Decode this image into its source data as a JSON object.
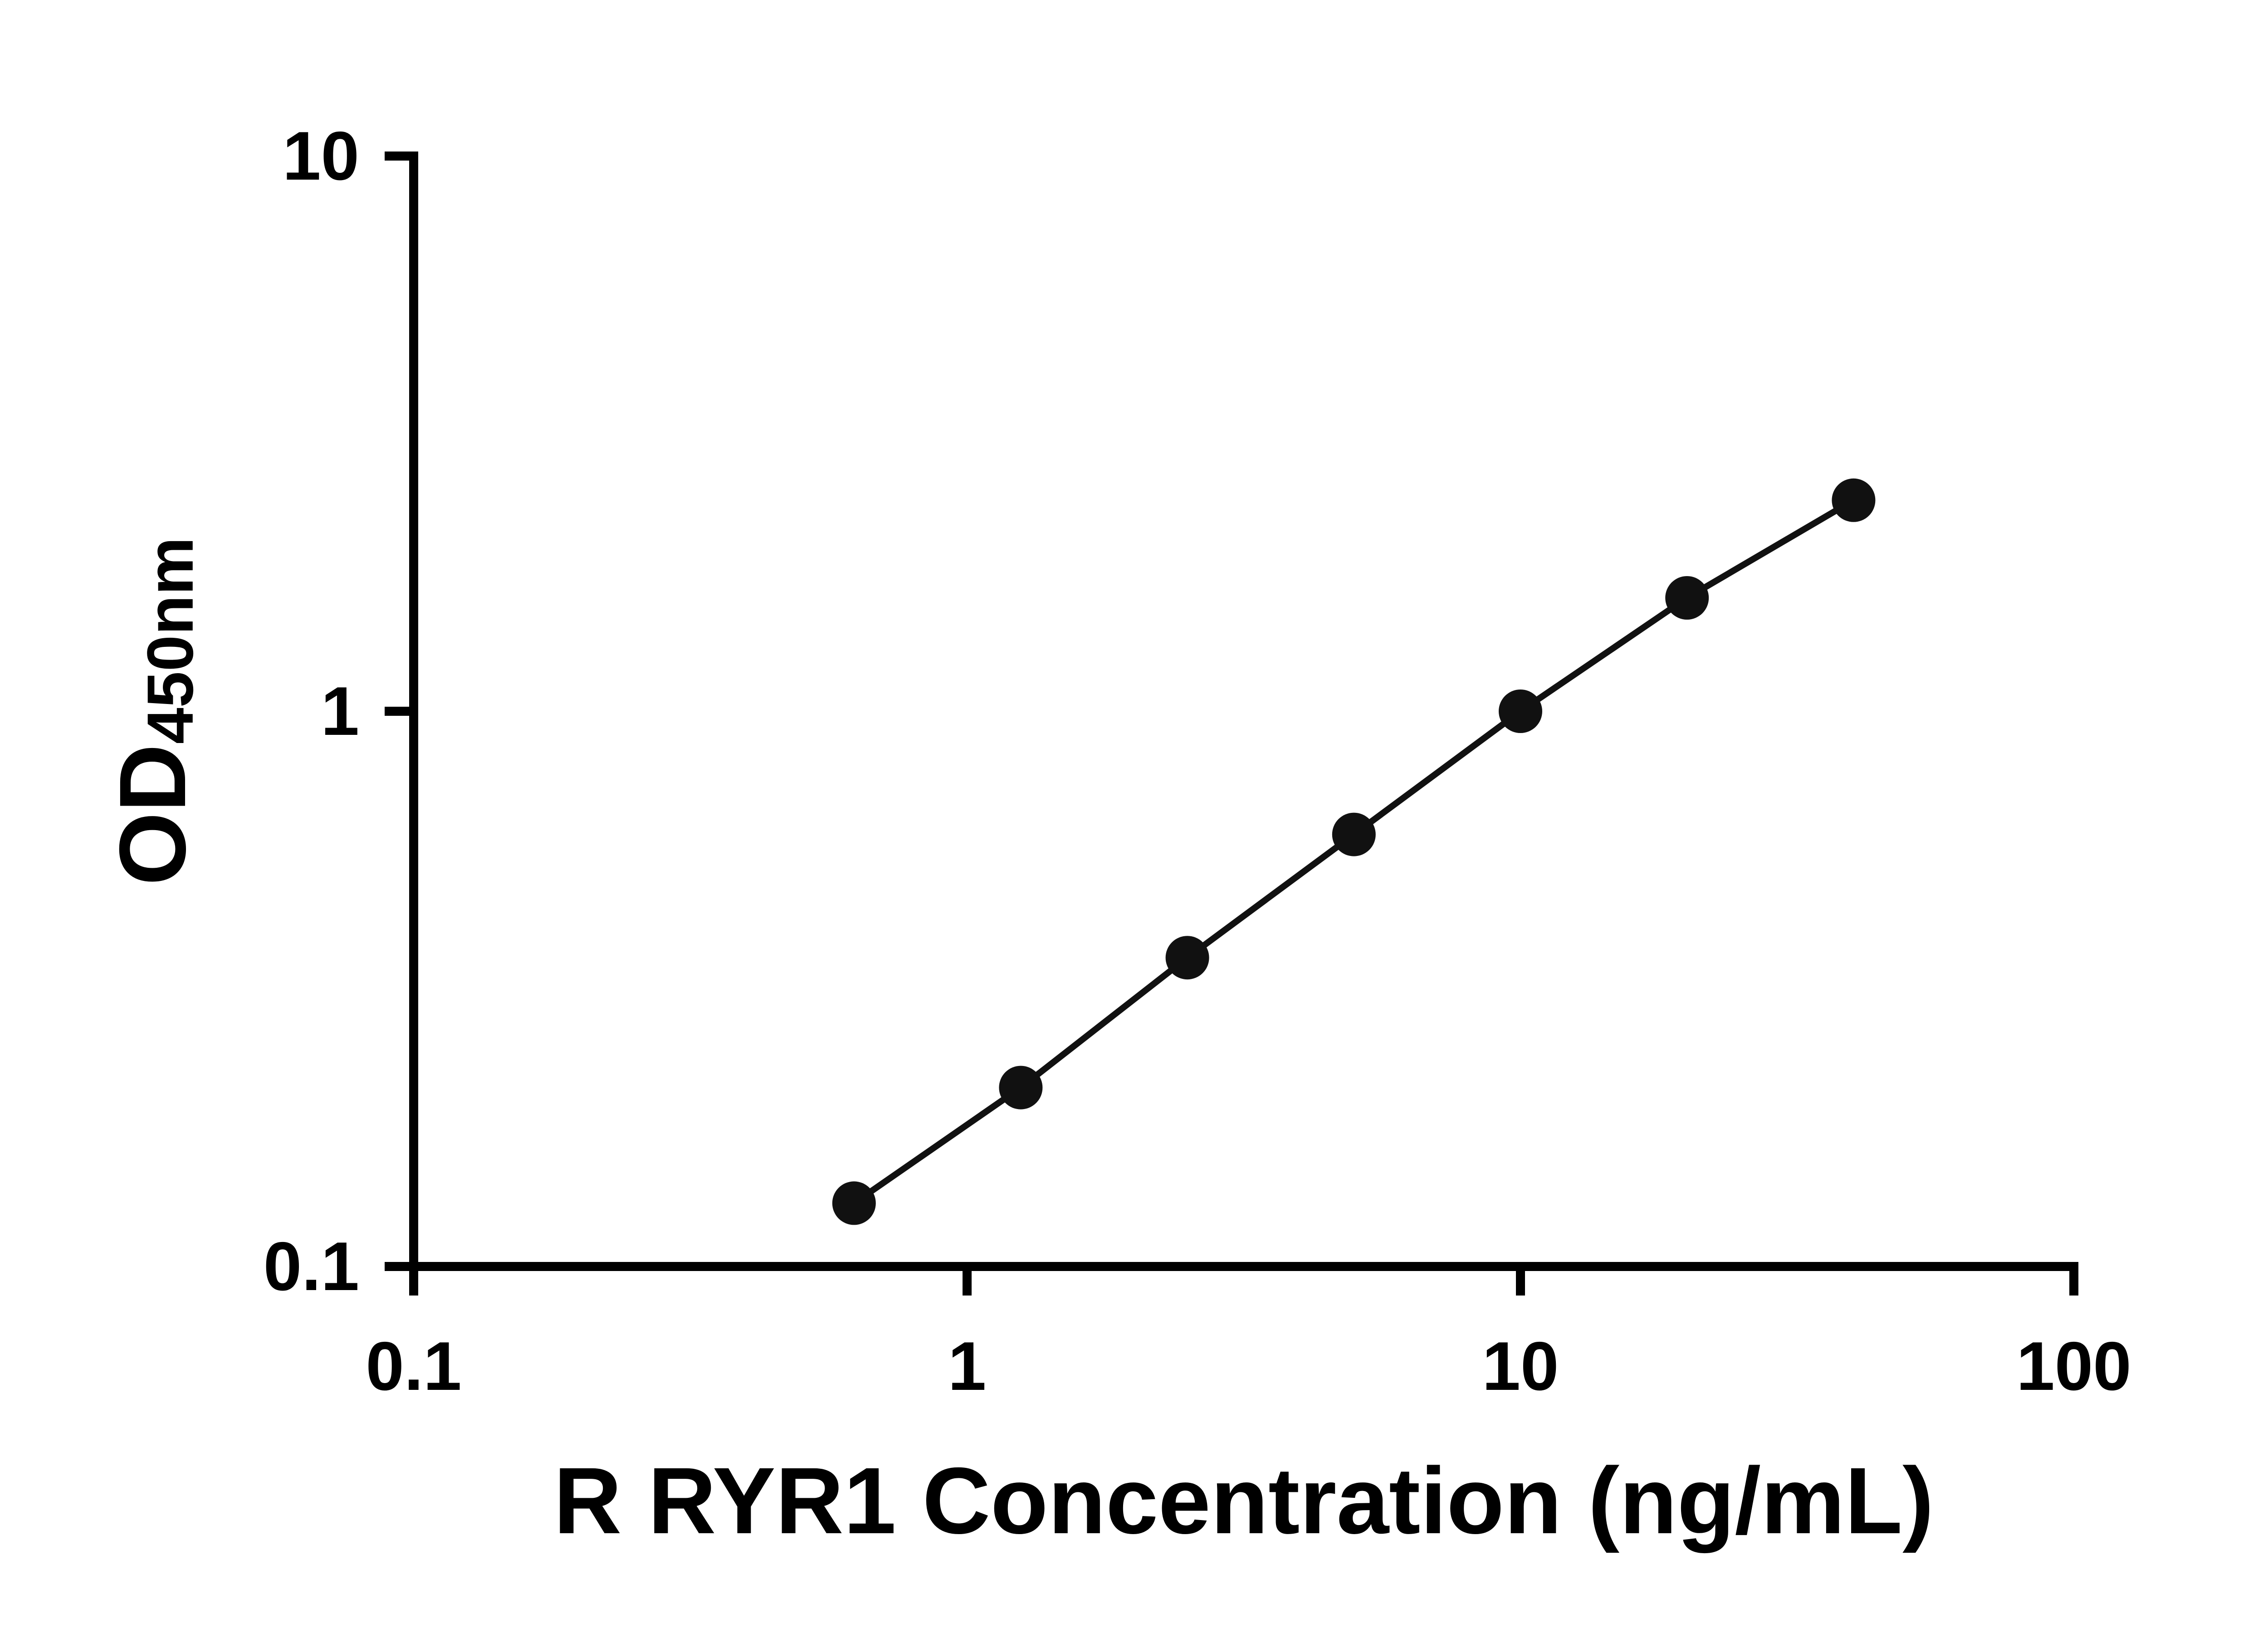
{
  "chart_data": {
    "type": "scatter",
    "title": "",
    "xlabel": "R RYR1 Concentration (ng/mL)",
    "ylabel_main": "OD",
    "ylabel_sub": "450nm",
    "x_scale": "log",
    "y_scale": "log",
    "xlim": [
      0.1,
      100
    ],
    "ylim": [
      0.1,
      10
    ],
    "x_ticks": [
      0.1,
      1,
      10,
      100
    ],
    "x_tick_labels": [
      "0.1",
      "1",
      "10",
      "100"
    ],
    "y_ticks": [
      0.1,
      1,
      10
    ],
    "y_tick_labels": [
      "0.1",
      "1",
      "10"
    ],
    "grid": false,
    "legend": false,
    "colors": {
      "axis": "#000000",
      "text": "#000000",
      "marker": "#111111",
      "line": "#111111",
      "background": "#ffffff"
    },
    "series": [
      {
        "x": [
          0.625,
          1.25,
          2.5,
          5,
          10,
          20,
          40
        ],
        "y": [
          0.13,
          0.21,
          0.36,
          0.6,
          1.0,
          1.6,
          2.4
        ]
      }
    ]
  }
}
